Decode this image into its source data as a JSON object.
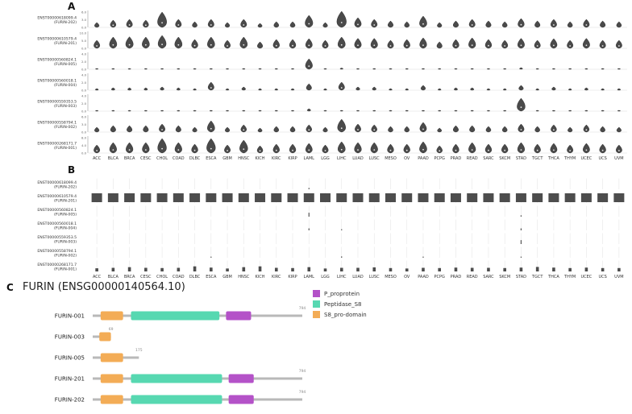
{
  "panel_a": {
    "label": "A"
  },
  "panel_b": {
    "label": "B"
  },
  "transcripts": [
    {
      "id": "ENST00000618099.4",
      "name": "(FURIN-202)"
    },
    {
      "id": "ENST00000610579.4",
      "name": "(FURIN-201)"
    },
    {
      "id": "ENST00000560824.1",
      "name": "(FURIN-005)"
    },
    {
      "id": "ENST00000560018.1",
      "name": "(FURIN-004)"
    },
    {
      "id": "ENST00000559353.5",
      "name": "(FURIN-003)"
    },
    {
      "id": "ENST00000558794.1",
      "name": "(FURIN-002)"
    },
    {
      "id": "ENST00000268171.7",
      "name": "(FURIN-001)"
    }
  ],
  "chart_data": [
    {
      "type": "violin",
      "panel": "A",
      "description": "FURIN isoform expression distributions across TCGA tumor types; values are relative violin heights (0-1 of each row axis max)",
      "violin_color": "#4a4a4a",
      "categories": [
        "ACC",
        "BLCA",
        "BRCA",
        "CESC",
        "CHOL",
        "COAD",
        "DLBC",
        "ESCA",
        "GBM",
        "HNSC",
        "KICH",
        "KIRC",
        "KIRP",
        "LAML",
        "LGG",
        "LIHC",
        "LUAD",
        "LUSC",
        "MESO",
        "OV",
        "PAAD",
        "PCPG",
        "PRAD",
        "READ",
        "SARC",
        "SKCM",
        "STAD",
        "TGCT",
        "THCA",
        "THYM",
        "UCEC",
        "UCS",
        "UVM"
      ],
      "series": [
        {
          "name": "ENST00000618099.4 (FURIN-202)",
          "axis_max": 6,
          "yticks": [
            "6.0",
            "3.0",
            "0.0"
          ],
          "values": [
            0.3,
            0.45,
            0.5,
            0.45,
            0.95,
            0.5,
            0.35,
            0.5,
            0.3,
            0.5,
            0.25,
            0.35,
            0.35,
            0.75,
            0.3,
            1.0,
            0.6,
            0.5,
            0.4,
            0.35,
            0.7,
            0.3,
            0.4,
            0.5,
            0.4,
            0.35,
            0.55,
            0.4,
            0.5,
            0.35,
            0.5,
            0.4,
            0.35
          ]
        },
        {
          "name": "ENST00000610579.4 (FURIN-201)",
          "axis_max": 10,
          "yticks": [
            "10.0",
            "5.0",
            "0.0"
          ],
          "values": [
            0.5,
            0.7,
            0.72,
            0.7,
            0.8,
            0.7,
            0.55,
            0.7,
            0.5,
            0.7,
            0.4,
            0.55,
            0.55,
            0.6,
            0.5,
            0.7,
            0.62,
            0.62,
            0.5,
            0.55,
            0.65,
            0.4,
            0.55,
            0.65,
            0.55,
            0.5,
            0.62,
            0.5,
            0.6,
            0.5,
            0.62,
            0.5,
            0.5
          ]
        },
        {
          "name": "ENST00000560824.1 (FURIN-005)",
          "axis_max": 4,
          "yticks": [
            "4.0",
            "2.0",
            "0.0"
          ],
          "values": [
            0.05,
            0.05,
            0.05,
            0.05,
            0.05,
            0.05,
            0.05,
            0.05,
            0.05,
            0.05,
            0.05,
            0.05,
            0.05,
            0.65,
            0.05,
            0.08,
            0.05,
            0.05,
            0.05,
            0.05,
            0.05,
            0.05,
            0.05,
            0.05,
            0.05,
            0.05,
            0.1,
            0.05,
            0.05,
            0.05,
            0.05,
            0.05,
            0.05
          ]
        },
        {
          "name": "ENST00000560018.1 (FURIN-004)",
          "axis_max": 4,
          "yticks": [
            "4.0",
            "2.0",
            "0.0"
          ],
          "values": [
            0.1,
            0.15,
            0.15,
            0.15,
            0.2,
            0.15,
            0.1,
            0.5,
            0.1,
            0.2,
            0.1,
            0.1,
            0.1,
            0.4,
            0.1,
            0.5,
            0.2,
            0.2,
            0.1,
            0.1,
            0.3,
            0.1,
            0.15,
            0.15,
            0.1,
            0.1,
            0.3,
            0.1,
            0.2,
            0.1,
            0.15,
            0.1,
            0.1
          ]
        },
        {
          "name": "ENST00000559353.5 (FURIN-003)",
          "axis_max": 4,
          "yticks": [
            "4.0",
            "2.0",
            "0.0"
          ],
          "values": [
            0.05,
            0.05,
            0.05,
            0.05,
            0.05,
            0.05,
            0.05,
            0.05,
            0.05,
            0.05,
            0.05,
            0.05,
            0.05,
            0.15,
            0.05,
            0.05,
            0.05,
            0.05,
            0.05,
            0.05,
            0.05,
            0.05,
            0.05,
            0.05,
            0.05,
            0.05,
            0.8,
            0.05,
            0.05,
            0.05,
            0.05,
            0.05,
            0.05
          ]
        },
        {
          "name": "ENST00000558794.1 (FURIN-002)",
          "axis_max": 6,
          "yticks": [
            "6.0",
            "3.0",
            "0.0"
          ],
          "values": [
            0.3,
            0.4,
            0.4,
            0.4,
            0.5,
            0.4,
            0.3,
            0.7,
            0.3,
            0.45,
            0.25,
            0.35,
            0.35,
            0.45,
            0.3,
            0.8,
            0.5,
            0.45,
            0.35,
            0.35,
            0.6,
            0.25,
            0.4,
            0.4,
            0.35,
            0.35,
            0.5,
            0.35,
            0.45,
            0.3,
            0.45,
            0.35,
            0.3
          ]
        },
        {
          "name": "ENST00000268171.7 (FURIN-001)",
          "axis_max": 8,
          "yticks": [
            "8.0",
            "4.0",
            "0.0"
          ],
          "values": [
            0.5,
            0.65,
            0.65,
            0.65,
            0.9,
            0.65,
            0.55,
            0.9,
            0.5,
            0.8,
            0.45,
            0.55,
            0.55,
            0.6,
            0.5,
            0.7,
            0.65,
            0.65,
            0.55,
            0.55,
            0.7,
            0.45,
            0.55,
            0.65,
            0.55,
            0.55,
            0.65,
            0.55,
            0.6,
            0.5,
            0.6,
            0.55,
            0.5
          ]
        }
      ]
    },
    {
      "type": "bar",
      "panel": "B",
      "description": "FURIN isoform usage marks across TCGA tumor types (relative mark height 0-1; FURIN-201 shown as full blocks)",
      "bar_color": "#4d4d4d",
      "categories": [
        "ACC",
        "BLCA",
        "BRCA",
        "CESC",
        "CHOL",
        "COAD",
        "DLBC",
        "ESCA",
        "GBM",
        "HNSC",
        "KICH",
        "KIRC",
        "KIRP",
        "LAML",
        "LGG",
        "LIHC",
        "LUAD",
        "LUSC",
        "MESO",
        "OV",
        "PAAD",
        "PCPG",
        "PRAD",
        "READ",
        "SARC",
        "SKCM",
        "STAD",
        "TGCT",
        "THCA",
        "THYM",
        "UCEC",
        "UCS",
        "UVM"
      ],
      "series": [
        {
          "name": "ENST00000618099.4 (FURIN-202)",
          "style": "tick",
          "values": [
            0,
            0,
            0,
            0,
            0,
            0,
            0,
            0,
            0,
            0,
            0,
            0,
            0,
            0.12,
            0,
            0,
            0,
            0,
            0,
            0,
            0,
            0,
            0,
            0,
            0,
            0,
            0,
            0,
            0,
            0,
            0,
            0,
            0
          ]
        },
        {
          "name": "ENST00000610579.4 (FURIN-201)",
          "style": "block",
          "values": [
            0.95,
            0.95,
            0.95,
            0.95,
            0.95,
            0.95,
            0.95,
            0.95,
            0.95,
            0.95,
            0.95,
            0.95,
            0.95,
            0.95,
            0.95,
            0.95,
            0.95,
            0.95,
            0.95,
            0.95,
            0.95,
            0.95,
            0.95,
            0.95,
            0.95,
            0.95,
            0.95,
            0.95,
            0.95,
            0.95,
            0.95,
            0.95,
            0.95
          ]
        },
        {
          "name": "ENST00000560824.1 (FURIN-005)",
          "style": "tick",
          "values": [
            0,
            0,
            0,
            0,
            0,
            0,
            0,
            0,
            0,
            0,
            0,
            0,
            0,
            0.35,
            0,
            0,
            0,
            0,
            0,
            0,
            0,
            0,
            0,
            0,
            0,
            0,
            0.12,
            0,
            0,
            0,
            0,
            0,
            0
          ]
        },
        {
          "name": "ENST00000560018.1 (FURIN-004)",
          "style": "tick",
          "values": [
            0,
            0,
            0,
            0,
            0,
            0,
            0,
            0,
            0,
            0,
            0,
            0,
            0,
            0.18,
            0,
            0.1,
            0,
            0,
            0,
            0,
            0,
            0,
            0,
            0,
            0,
            0,
            0.18,
            0,
            0,
            0,
            0,
            0,
            0
          ]
        },
        {
          "name": "ENST00000559353.5 (FURIN-003)",
          "style": "tick",
          "values": [
            0,
            0,
            0,
            0,
            0,
            0,
            0,
            0,
            0,
            0,
            0,
            0,
            0,
            0,
            0,
            0,
            0,
            0,
            0,
            0,
            0,
            0,
            0,
            0,
            0,
            0,
            0.35,
            0,
            0,
            0,
            0,
            0,
            0
          ]
        },
        {
          "name": "ENST00000558794.1 (FURIN-002)",
          "style": "tick",
          "values": [
            0,
            0,
            0,
            0,
            0,
            0,
            0,
            0.1,
            0,
            0,
            0,
            0,
            0,
            0,
            0,
            0.12,
            0,
            0,
            0,
            0,
            0.1,
            0,
            0,
            0,
            0,
            0,
            0.1,
            0,
            0,
            0,
            0,
            0,
            0
          ]
        },
        {
          "name": "ENST00000268171.7 (FURIN-001)",
          "style": "bar",
          "values": [
            0.28,
            0.32,
            0.38,
            0.32,
            0.3,
            0.32,
            0.45,
            0.34,
            0.26,
            0.38,
            0.45,
            0.32,
            0.3,
            0.38,
            0.26,
            0.32,
            0.32,
            0.36,
            0.3,
            0.26,
            0.32,
            0.3,
            0.34,
            0.32,
            0.32,
            0.3,
            0.34,
            0.4,
            0.34,
            0.3,
            0.34,
            0.3,
            0.3
          ]
        }
      ]
    }
  ],
  "panel_c": {
    "panel_label": "C",
    "title": "FURIN (ENSG00000140564.10)",
    "backbone_color": "#b9b9b9",
    "max_aa": 794,
    "legend": [
      {
        "label": "P_proprotein",
        "color": "#b452c8"
      },
      {
        "label": "Peptidase_S8",
        "color": "#57d8b1"
      },
      {
        "label": "S8_pro-domain",
        "color": "#f3ac56"
      }
    ],
    "proteins": [
      {
        "name": "FURIN-001",
        "length": 794,
        "length_label": "794",
        "domains": [
          {
            "type": "S8_pro-domain",
            "start": 30,
            "end": 115
          },
          {
            "type": "Peptidase_S8",
            "start": 145,
            "end": 480
          },
          {
            "type": "P_proprotein",
            "start": 505,
            "end": 600
          }
        ]
      },
      {
        "name": "FURIN-003",
        "length": 69,
        "length_label": "69",
        "domains": [
          {
            "type": "S8_pro-domain",
            "start": 25,
            "end": 69
          }
        ]
      },
      {
        "name": "FURIN-005",
        "length": 175,
        "length_label": "175",
        "domains": [
          {
            "type": "S8_pro-domain",
            "start": 30,
            "end": 115
          }
        ]
      },
      {
        "name": "FURIN-201",
        "length": 794,
        "length_label": "794",
        "domains": [
          {
            "type": "S8_pro-domain",
            "start": 30,
            "end": 115
          },
          {
            "type": "Peptidase_S8",
            "start": 145,
            "end": 490
          },
          {
            "type": "P_proprotein",
            "start": 515,
            "end": 610
          }
        ]
      },
      {
        "name": "FURIN-202",
        "length": 794,
        "length_label": "794",
        "domains": [
          {
            "type": "S8_pro-domain",
            "start": 30,
            "end": 115
          },
          {
            "type": "Peptidase_S8",
            "start": 145,
            "end": 490
          },
          {
            "type": "P_proprotein",
            "start": 515,
            "end": 610
          }
        ]
      }
    ]
  }
}
